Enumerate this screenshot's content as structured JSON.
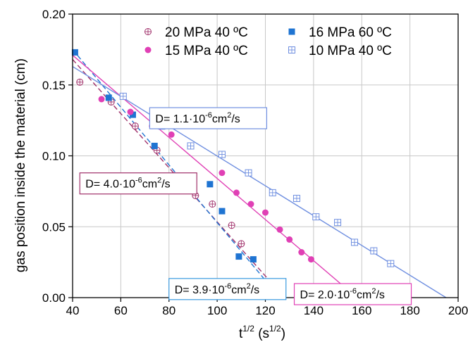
{
  "chart_data": {
    "type": "scatter",
    "xlabel": "t",
    "xlabel_sup": "1/2",
    "xlabel_unit_open": " (s",
    "xlabel_unit_sup": "1/2",
    "xlabel_unit_close": ")",
    "ylabel": "gas position inside the material (cm)",
    "xlim": [
      40,
      200
    ],
    "ylim": [
      0,
      0.2
    ],
    "x_ticks": [
      40,
      60,
      80,
      100,
      120,
      140,
      160,
      180,
      200
    ],
    "y_ticks": [
      0.0,
      0.05,
      0.1,
      0.15,
      0.2
    ],
    "x_tick_labels": [
      "40",
      "60",
      "80",
      "100",
      "120",
      "140",
      "160",
      "180",
      "200"
    ],
    "y_tick_labels": [
      "0.00",
      "0.05",
      "0.10",
      "0.15",
      "0.20"
    ],
    "grid": true,
    "legend_position": "top-right",
    "series": [
      {
        "name": "20 MPa 40 ºC",
        "marker": "circle-plus",
        "color": "#a0306a",
        "fit_line_style": "dashed",
        "x": [
          43,
          56,
          66,
          75,
          91,
          98,
          106,
          110,
          121,
          127
        ],
        "y": [
          0.152,
          0.138,
          0.121,
          0.104,
          0.072,
          0.066,
          0.051,
          0.038,
          0.003,
          0.002
        ],
        "fit": {
          "x": [
            40,
            128
          ],
          "y": [
            0.168,
            0.0
          ]
        }
      },
      {
        "name": "16 MPa 60 ºC",
        "marker": "square",
        "color": "#1f74d2",
        "fit_line_style": "dashed",
        "x": [
          41,
          55,
          65,
          74,
          97,
          102,
          109,
          115,
          126
        ],
        "y": [
          0.173,
          0.141,
          0.129,
          0.107,
          0.08,
          0.061,
          0.029,
          0.027,
          0.002
        ],
        "fit": {
          "x": [
            40,
            126
          ],
          "y": [
            0.175,
            0.0
          ]
        }
      },
      {
        "name": "15 MPa 40 ºC",
        "marker": "filled-circle",
        "color": "#e040b5",
        "fit_line_style": "solid",
        "x": [
          52,
          64,
          73,
          81,
          102,
          108,
          114,
          120,
          126,
          130,
          135,
          139
        ],
        "y": [
          0.14,
          0.131,
          0.121,
          0.115,
          0.088,
          0.074,
          0.066,
          0.06,
          0.048,
          0.041,
          0.032,
          0.027
        ],
        "fit": {
          "x": [
            40,
            158
          ],
          "y": [
            0.171,
            0.0
          ]
        }
      },
      {
        "name": "10 MPa 40 ºC",
        "marker": "square-plus",
        "color": "#6f8fe0",
        "fit_line_style": "solid",
        "x": [
          61,
          77,
          89,
          102,
          113,
          123,
          133,
          141,
          150,
          157,
          165,
          172
        ],
        "y": [
          0.142,
          0.121,
          0.107,
          0.101,
          0.088,
          0.074,
          0.07,
          0.057,
          0.053,
          0.039,
          0.033,
          0.024
        ],
        "fit": {
          "x": [
            40,
            195
          ],
          "y": [
            0.163,
            0.0
          ]
        }
      }
    ],
    "annotations": [
      {
        "text_pre": "D= 1.1·10",
        "sup": "-6",
        "text_post": "cm",
        "sup2": "2",
        "text_end": "/s",
        "box_color": "#6f8fe0",
        "anchor_x": 72,
        "anchor_y": 0.134
      },
      {
        "text_pre": "D= 4.0·10",
        "sup": "-6",
        "text_post": "cm",
        "sup2": "2",
        "text_end": "/s",
        "box_color": "#a0306a",
        "anchor_x": 43,
        "anchor_y": 0.088
      },
      {
        "text_pre": "D= 3.9·10",
        "sup": "-6",
        "text_post": "cm",
        "sup2": "2",
        "text_end": "/s",
        "box_color": "#3a9ae0",
        "anchor_x": 80,
        "anchor_y": 0.0135
      },
      {
        "text_pre": "D= 2.0·10",
        "sup": "-6",
        "text_post": "cm",
        "sup2": "2",
        "text_end": "/s",
        "box_color": "#e040b5",
        "anchor_x": 132,
        "anchor_y": 0.0099
      }
    ]
  }
}
